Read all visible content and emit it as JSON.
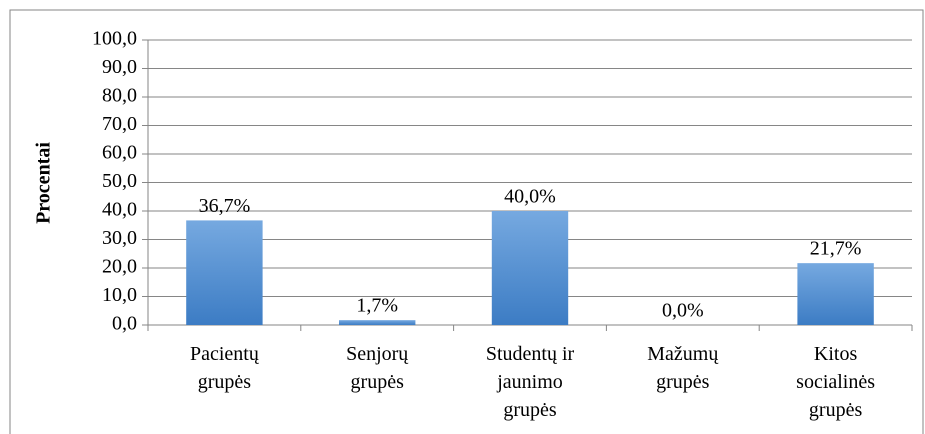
{
  "chart_data": {
    "type": "bar",
    "y_label": "Procentai",
    "categories": [
      "Pacientų\ngrupės",
      "Senjorų\ngrupės",
      "Studentų ir\njaunimo\ngrupės",
      "Mažumų\ngrupės",
      "Kitos\nsocialinės\ngrupės"
    ],
    "values": [
      36.7,
      1.7,
      40.0,
      0.0,
      21.7
    ],
    "value_labels": [
      "36,7%",
      "1,7%",
      "40,0%",
      "0,0%",
      "21,7%"
    ],
    "color": "#4a86cf",
    "ylim": [
      0,
      100
    ],
    "yticks": [
      {
        "value": 0,
        "label": "0,0"
      },
      {
        "value": 10,
        "label": "10,0"
      },
      {
        "value": 20,
        "label": "20,0"
      },
      {
        "value": 30,
        "label": "30,0"
      },
      {
        "value": 40,
        "label": "40,0"
      },
      {
        "value": 50,
        "label": "50,0"
      },
      {
        "value": 60,
        "label": "60,0"
      },
      {
        "value": 70,
        "label": "70,0"
      },
      {
        "value": 80,
        "label": "80,0"
      },
      {
        "value": 90,
        "label": "90,0"
      },
      {
        "value": 100,
        "label": "100,0"
      }
    ],
    "grid": true
  }
}
